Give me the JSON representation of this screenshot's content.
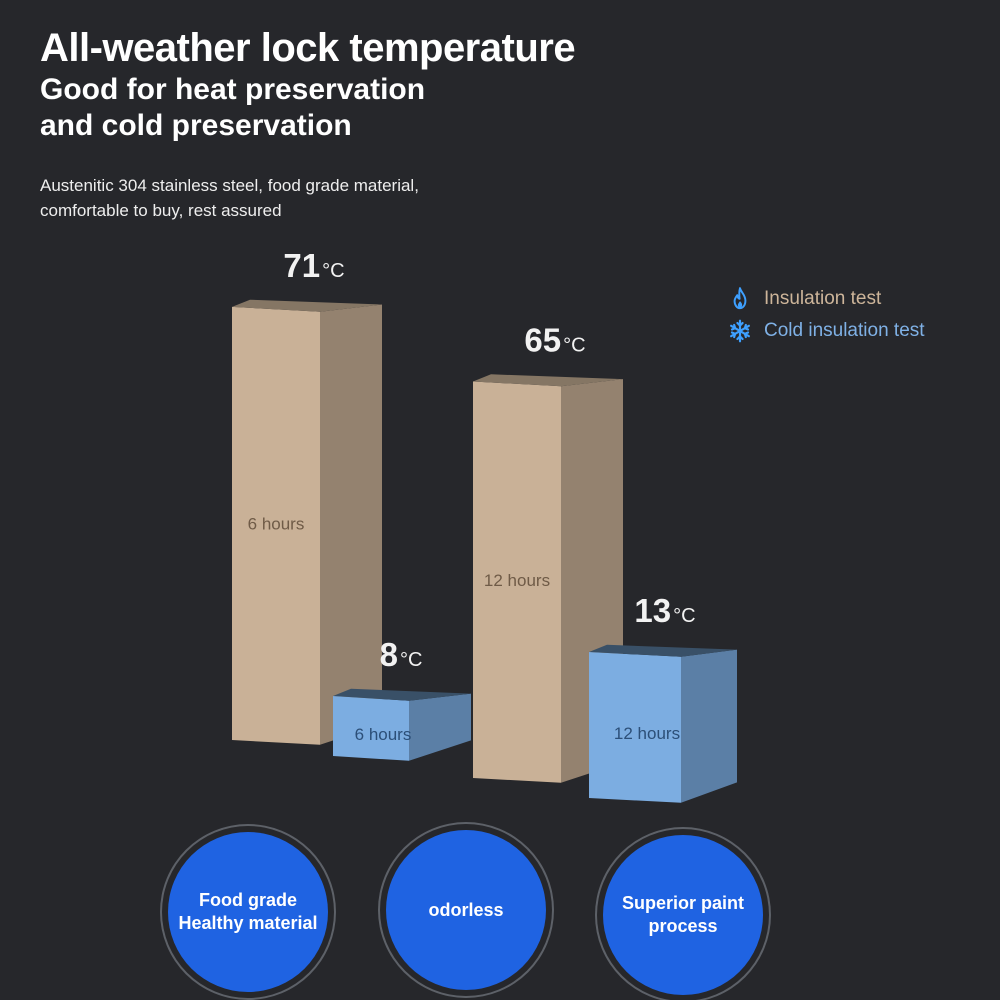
{
  "header": {
    "title": "All-weather lock temperature",
    "subtitle_line1": "Good for heat preservation",
    "subtitle_line2": "and cold preservation",
    "desc_line1": "Austenitic 304 stainless steel, food grade material,",
    "desc_line2": "comfortable to buy, rest assured"
  },
  "legend": [
    {
      "label": "Insulation test",
      "icon": "flame-icon",
      "color": "#cdb59a"
    },
    {
      "label": "Cold insulation test",
      "icon": "snowflake-icon",
      "color": "#7fb1e6"
    }
  ],
  "chart_data": {
    "type": "bar",
    "categories": [
      "6 hours",
      "12 hours"
    ],
    "unit": "°C",
    "series": [
      {
        "name": "Insulation test",
        "values": [
          71,
          65
        ],
        "color": "#cdb59a"
      },
      {
        "name": "Cold insulation test",
        "values": [
          8,
          13
        ],
        "color": "#7fb1e6"
      }
    ]
  },
  "features": [
    {
      "line1": "Food grade",
      "line2": "Healthy material"
    },
    {
      "line1": "odorless",
      "line2": ""
    },
    {
      "line1": "Superior paint",
      "line2": "process"
    }
  ]
}
